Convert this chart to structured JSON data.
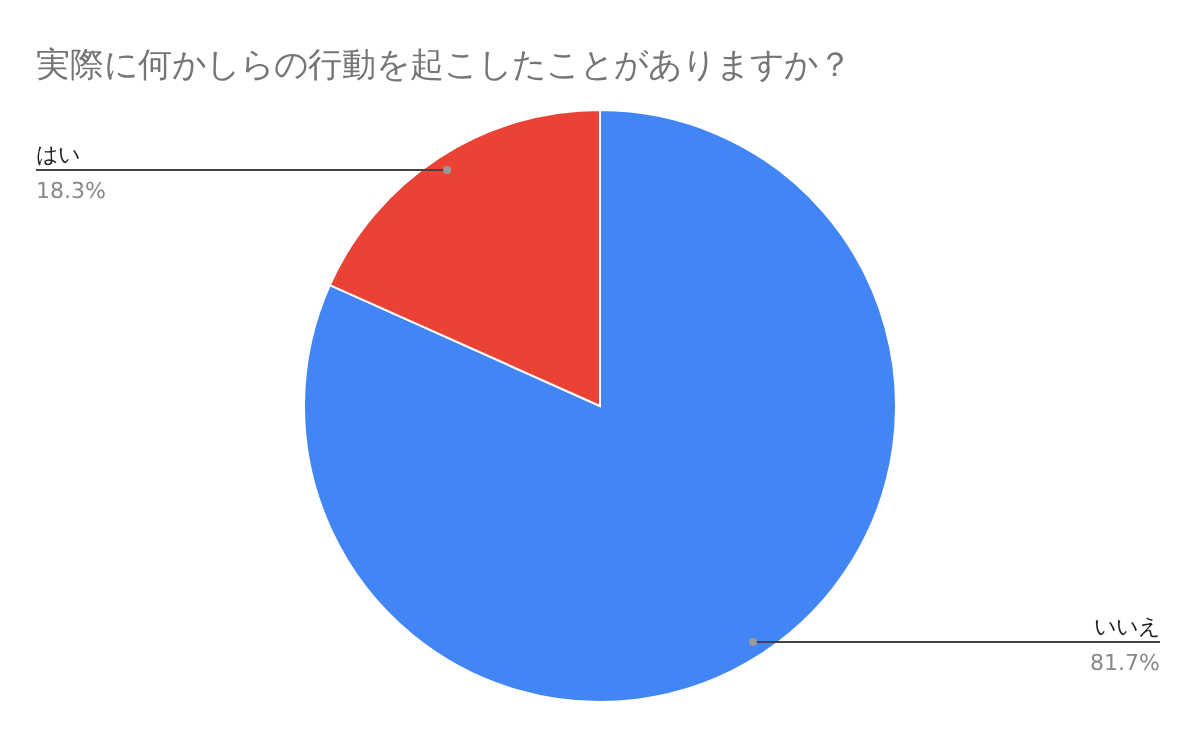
{
  "chart_data": {
    "type": "pie",
    "title": "実際に何かしらの行動を起こしたことがありますか？",
    "categories": [
      "いいえ",
      "はい"
    ],
    "values": [
      81.7,
      18.3
    ],
    "colors": [
      "#4285f4",
      "#ea4335"
    ],
    "value_labels": [
      "81.7%",
      "18.3%"
    ]
  }
}
